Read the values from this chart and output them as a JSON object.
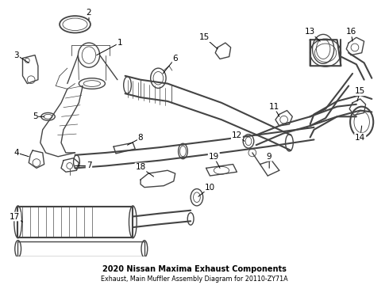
{
  "title": "2020 Nissan Maxima Exhaust Components",
  "subtitle": "Exhaust, Main Muffler Assembly Diagram for 20110-ZY71A",
  "background_color": "#ffffff",
  "line_color": "#444444",
  "text_color": "#000000",
  "fig_width": 4.9,
  "fig_height": 3.6,
  "dpi": 100,
  "label_fontsize": 7.5,
  "title_fontsize": 7.0,
  "subtitle_fontsize": 5.8
}
